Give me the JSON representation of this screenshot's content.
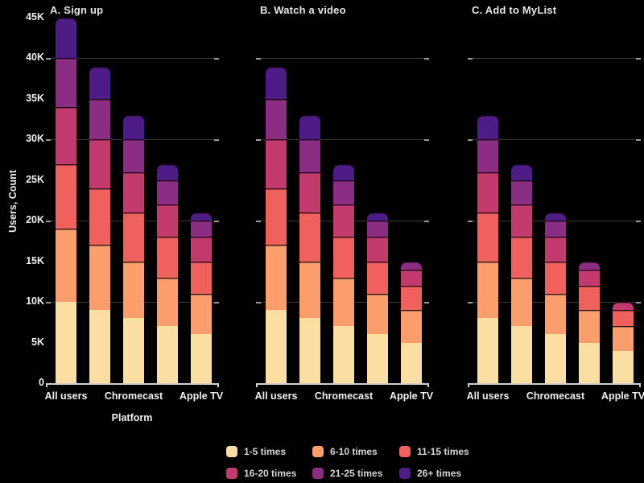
{
  "chart_data": {
    "type": "bar",
    "stacked": true,
    "background": "#000000",
    "ylabel": "Users, Count",
    "xlabel": "Platform",
    "unit": "users, values in thousands (K)",
    "ylim_k": [
      0,
      45
    ],
    "ytick_step_k": 5,
    "ytick_labels": [
      "0",
      "5K",
      "10K",
      "15K",
      "20K",
      "25K",
      "30K",
      "35K",
      "40K",
      "45K"
    ],
    "gridlines_k": [
      10,
      20,
      30,
      40
    ],
    "grid_on": true,
    "legend_position": "bottom",
    "series": [
      {
        "name": "1-5 times",
        "color": "#FBDFA2"
      },
      {
        "name": "6-10 times",
        "color": "#FC9E6B"
      },
      {
        "name": "11-15 times",
        "color": "#F0615E"
      },
      {
        "name": "16-20 times",
        "color": "#C23A6E"
      },
      {
        "name": "21-25 times",
        "color": "#8C2D84"
      },
      {
        "name": "26+ times",
        "color": "#4E1C86"
      }
    ],
    "x_tick_labels": [
      {
        "label": "All users",
        "bar_index": 0
      },
      {
        "label": "Chromecast",
        "bar_index": 2
      },
      {
        "label": "Apple TV",
        "bar_index": 4
      }
    ],
    "bars_per_panel": 5,
    "panels": [
      {
        "title": "A. Sign up",
        "bars_k": [
          [
            10,
            9,
            8,
            7,
            6,
            5
          ],
          [
            9,
            8,
            7,
            6,
            5,
            4
          ],
          [
            8,
            7,
            6,
            5,
            4,
            3
          ],
          [
            7,
            6,
            5,
            4,
            3,
            2
          ],
          [
            6,
            5,
            4,
            3,
            2,
            1
          ]
        ]
      },
      {
        "title": "B. Watch a video",
        "bars_k": [
          [
            9,
            8,
            7,
            6,
            5,
            4
          ],
          [
            8,
            7,
            6,
            5,
            4,
            3
          ],
          [
            7,
            6,
            5,
            4,
            3,
            2
          ],
          [
            6,
            5,
            4,
            3,
            2,
            1
          ],
          [
            5,
            4,
            3,
            2,
            1,
            0
          ]
        ]
      },
      {
        "title": "C. Add to MyList",
        "bars_k": [
          [
            8,
            7,
            6,
            5,
            4,
            3
          ],
          [
            7,
            6,
            5,
            4,
            3,
            2
          ],
          [
            6,
            5,
            4,
            3,
            2,
            1
          ],
          [
            5,
            4,
            3,
            2,
            1,
            0
          ],
          [
            4,
            3,
            2,
            1,
            0,
            0
          ]
        ]
      }
    ]
  }
}
